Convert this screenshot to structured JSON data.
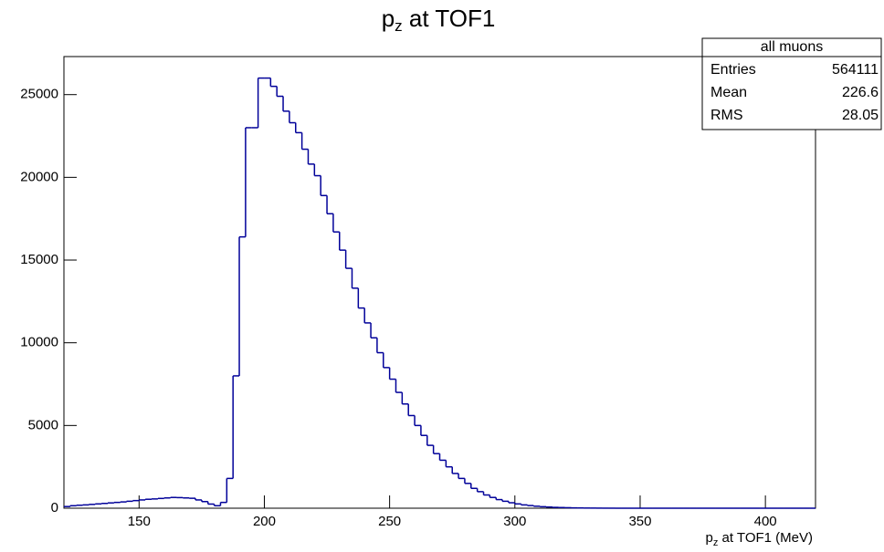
{
  "chart_data": {
    "type": "histogram",
    "title": [
      "p",
      "z",
      " at TOF1"
    ],
    "x_label": [
      "p",
      "z",
      " at TOF1 (MeV)"
    ],
    "color": "#000099",
    "xlim": [
      120,
      420
    ],
    "ylim": [
      0,
      27300
    ],
    "xticks": [
      150,
      200,
      250,
      300,
      350,
      400
    ],
    "yticks": [
      0,
      5000,
      10000,
      15000,
      20000,
      25000
    ],
    "bins": [
      120,
      122.5,
      125,
      127.5,
      130,
      132.5,
      135,
      137.5,
      140,
      142.5,
      145,
      147.5,
      150,
      152.5,
      155,
      157.5,
      160,
      162.5,
      165,
      167.5,
      170,
      172.5,
      175,
      177.5,
      180,
      182.5,
      185,
      187.5,
      190,
      192.5,
      195,
      197.5,
      200,
      202.5,
      205,
      207.5,
      210,
      212.5,
      215,
      217.5,
      220,
      222.5,
      225,
      227.5,
      230,
      232.5,
      235,
      237.5,
      240,
      242.5,
      245,
      247.5,
      250,
      252.5,
      255,
      257.5,
      260,
      262.5,
      265,
      267.5,
      270,
      272.5,
      275,
      277.5,
      280,
      282.5,
      285,
      287.5,
      290,
      292.5,
      295,
      297.5,
      300,
      302.5,
      305,
      307.5,
      310,
      312.5,
      315,
      317.5,
      320,
      322.5,
      325,
      327.5,
      330,
      332.5,
      335,
      337.5,
      340,
      342.5,
      345,
      347.5,
      350,
      352.5,
      355,
      357.5,
      360,
      362.5,
      365,
      367.5,
      370,
      372.5,
      375,
      377.5,
      380,
      382.5,
      385,
      387.5,
      390,
      392.5,
      395,
      397.5,
      400,
      402.5,
      405,
      407.5,
      410,
      412.5,
      415,
      417.5,
      420
    ],
    "values": [
      100,
      150,
      180,
      200,
      230,
      260,
      290,
      320,
      350,
      380,
      420,
      460,
      500,
      540,
      560,
      590,
      620,
      650,
      640,
      620,
      600,
      500,
      400,
      250,
      150,
      350,
      1800,
      8000,
      16400,
      23000,
      23000,
      26000,
      26000,
      25500,
      24900,
      24000,
      23300,
      22700,
      21700,
      20800,
      20100,
      18900,
      17800,
      16700,
      15600,
      14500,
      13300,
      12100,
      11200,
      10300,
      9400,
      8500,
      7800,
      7000,
      6300,
      5600,
      5000,
      4400,
      3800,
      3300,
      2900,
      2500,
      2100,
      1800,
      1500,
      1200,
      1000,
      800,
      650,
      520,
      420,
      330,
      260,
      200,
      160,
      120,
      90,
      70,
      50,
      40,
      30,
      20,
      15,
      10,
      8,
      5,
      3,
      2,
      0,
      0,
      0,
      0,
      0,
      0,
      0,
      0,
      0,
      0,
      0,
      0,
      0,
      0,
      0,
      0,
      0,
      0,
      0,
      0,
      0,
      0,
      0,
      0,
      0,
      0,
      0,
      0,
      0,
      0,
      0,
      0
    ],
    "stats": {
      "title": "all muons",
      "rows": [
        [
          "Entries",
          564111
        ],
        [
          "Mean",
          226.6
        ],
        [
          "RMS",
          28.05
        ]
      ]
    }
  }
}
